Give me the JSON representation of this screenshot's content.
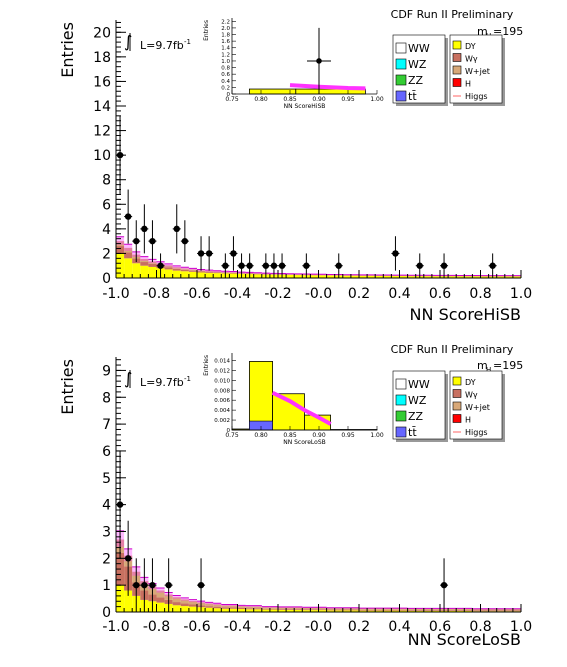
{
  "chart_data": [
    {
      "type": "bar",
      "stacked": true,
      "xlabel": "NN ScoreHiSB",
      "ylabel": "Entries",
      "xlim": [
        -1.0,
        1.0
      ],
      "ylim": [
        0,
        21
      ],
      "ytick_step": 2,
      "xticks": [
        -1.0,
        -0.8,
        -0.6,
        -0.4,
        -0.2,
        -0.0,
        0.2,
        0.4,
        0.6,
        0.8,
        1.0
      ],
      "xtick_labels": [
        "-1.0",
        "-0.8",
        "-0.6",
        "-0.4",
        "-0.2",
        "-0.0",
        "0.2",
        "0.4",
        "0.6",
        "0.8",
        "1.0"
      ],
      "yticks": [
        0,
        2,
        4,
        6,
        8,
        10,
        12,
        14,
        16,
        18,
        20
      ],
      "ytick_labels": [
        "0",
        "2",
        "4",
        "6",
        "8",
        "10",
        "12",
        "14",
        "16",
        "18",
        "20"
      ],
      "header": "CDF Run II Preliminary",
      "lumi_label": "L=9.7fb",
      "lumi_sup": "-1",
      "mass_label": "m",
      "mass_sub": "H",
      "mass_value": "=195",
      "bin_width": 0.04,
      "bin_edges_start": -1.0,
      "series": [
        {
          "name": "DY",
          "color": "#ffff00",
          "values": [
            2.0,
            1.6,
            1.2,
            1.0,
            0.9,
            0.8,
            0.7,
            0.6,
            0.55,
            0.5,
            0.45,
            0.42,
            0.4,
            0.38,
            0.36,
            0.34,
            0.32,
            0.3,
            0.28,
            0.27,
            0.26,
            0.25,
            0.24,
            0.23,
            0.22,
            0.21,
            0.2,
            0.2,
            0.19,
            0.19,
            0.18,
            0.18,
            0.17,
            0.17,
            0.16,
            0.16,
            0.15,
            0.15,
            0.15,
            0.14,
            0.14,
            0.14,
            0.13,
            0.13,
            0.13,
            0.12,
            0.12,
            0.12,
            0.12,
            0.12
          ]
        },
        {
          "name": "Wγ",
          "color": "#c87060",
          "values": [
            0.6,
            0.5,
            0.4,
            0.3,
            0.25,
            0.2,
            0.18,
            0.15,
            0.12,
            0.1,
            0.08,
            0.07,
            0.06,
            0.05,
            0.05,
            0.04,
            0.04,
            0.03,
            0.03,
            0.03,
            0.03,
            0.02,
            0.02,
            0.02,
            0.02,
            0.02,
            0.02,
            0.02,
            0.02,
            0.02,
            0.02,
            0.02,
            0.02,
            0.02,
            0.02,
            0.02,
            0.02,
            0.02,
            0.02,
            0.02,
            0.02,
            0.02,
            0.02,
            0.02,
            0.02,
            0.02,
            0.02,
            0.02,
            0.02,
            0.02
          ]
        },
        {
          "name": "W+jet",
          "color": "#d8a878",
          "values": [
            0.4,
            0.35,
            0.3,
            0.25,
            0.2,
            0.18,
            0.15,
            0.13,
            0.11,
            0.1,
            0.09,
            0.08,
            0.07,
            0.06,
            0.06,
            0.05,
            0.05,
            0.05,
            0.04,
            0.04,
            0.04,
            0.04,
            0.04,
            0.04,
            0.04,
            0.04,
            0.03,
            0.03,
            0.03,
            0.03,
            0.03,
            0.03,
            0.03,
            0.03,
            0.03,
            0.03,
            0.03,
            0.03,
            0.03,
            0.03,
            0.03,
            0.03,
            0.03,
            0.03,
            0.03,
            0.03,
            0.03,
            0.03,
            0.03,
            0.03
          ]
        }
      ],
      "band_color": "#ff33ff",
      "data_points": [
        {
          "x": -0.98,
          "y": 10,
          "yerr": 3.2
        },
        {
          "x": -0.94,
          "y": 5,
          "yerr": 2.2
        },
        {
          "x": -0.9,
          "y": 3,
          "yerr": 1.7
        },
        {
          "x": -0.86,
          "y": 4,
          "yerr": 2.0
        },
        {
          "x": -0.82,
          "y": 3,
          "yerr": 1.7
        },
        {
          "x": -0.78,
          "y": 1,
          "yerr": 1.0
        },
        {
          "x": -0.7,
          "y": 4,
          "yerr": 2.0
        },
        {
          "x": -0.66,
          "y": 3,
          "yerr": 1.7
        },
        {
          "x": -0.58,
          "y": 2,
          "yerr": 1.4
        },
        {
          "x": -0.54,
          "y": 2,
          "yerr": 1.4
        },
        {
          "x": -0.46,
          "y": 1,
          "yerr": 1.0
        },
        {
          "x": -0.42,
          "y": 2,
          "yerr": 1.4
        },
        {
          "x": -0.38,
          "y": 1,
          "yerr": 1.0
        },
        {
          "x": -0.34,
          "y": 1,
          "yerr": 1.0
        },
        {
          "x": -0.26,
          "y": 1,
          "yerr": 1.0
        },
        {
          "x": -0.22,
          "y": 1,
          "yerr": 1.0
        },
        {
          "x": -0.18,
          "y": 1,
          "yerr": 1.0
        },
        {
          "x": -0.06,
          "y": 1,
          "yerr": 1.0
        },
        {
          "x": 0.1,
          "y": 1,
          "yerr": 1.0
        },
        {
          "x": 0.38,
          "y": 2,
          "yerr": 1.4
        },
        {
          "x": 0.5,
          "y": 1,
          "yerr": 1.0
        },
        {
          "x": 0.62,
          "y": 1,
          "yerr": 1.0
        },
        {
          "x": 0.86,
          "y": 1,
          "yerr": 1.0
        }
      ],
      "inset": {
        "xlabel": "NN ScoreHiSB",
        "ylabel": "Entries",
        "xlim": [
          0.75,
          1.0
        ],
        "ylim": [
          0,
          2.3
        ],
        "xticks": [
          0.75,
          0.8,
          0.85,
          0.9,
          0.95,
          1.0
        ],
        "xtick_labels": [
          "0.75",
          "0.80",
          "0.85",
          "0.90",
          "0.95",
          "1.00"
        ],
        "yticks": [
          0,
          0.2,
          0.4,
          0.6,
          0.8,
          1.0,
          1.2,
          1.4,
          1.6,
          1.8,
          2.0,
          2.2
        ],
        "ytick_labels": [
          "0",
          "0.2",
          "0.4",
          "0.6",
          "0.8",
          "1.0",
          "1.2",
          "1.4",
          "1.6",
          "1.8",
          "2.0",
          "2.2"
        ],
        "bins": [
          {
            "x0": 0.78,
            "x1": 0.86,
            "y": 0.15
          },
          {
            "x0": 0.86,
            "x1": 0.98,
            "y": 0.15
          }
        ],
        "band": [
          [
            0.85,
            0.27
          ],
          [
            0.9,
            0.22
          ],
          [
            0.95,
            0.18
          ],
          [
            0.98,
            0.17
          ]
        ],
        "data_points": [
          {
            "x": 0.9,
            "y": 1.0,
            "yerr": 1.0
          }
        ]
      }
    },
    {
      "type": "bar",
      "stacked": true,
      "xlabel": "NN ScoreLoSB",
      "ylabel": "Entries",
      "xlim": [
        -1.0,
        1.0
      ],
      "ylim": [
        0,
        9.5
      ],
      "ytick_step": 1,
      "xticks": [
        -1.0,
        -0.8,
        -0.6,
        -0.4,
        -0.2,
        -0.0,
        0.2,
        0.4,
        0.6,
        0.8,
        1.0
      ],
      "xtick_labels": [
        "-1.0",
        "-0.8",
        "-0.6",
        "-0.4",
        "-0.2",
        "-0.0",
        "0.2",
        "0.4",
        "0.6",
        "0.8",
        "1.0"
      ],
      "yticks": [
        0,
        1,
        2,
        3,
        4,
        5,
        6,
        7,
        8,
        9
      ],
      "ytick_labels": [
        "0",
        "1",
        "2",
        "3",
        "4",
        "5",
        "6",
        "7",
        "8",
        "9"
      ],
      "header": "CDF Run II Preliminary",
      "lumi_label": "L=9.7fb",
      "lumi_sup": "-1",
      "mass_label": "m",
      "mass_sub": "H",
      "mass_value": "=195",
      "bin_width": 0.04,
      "bin_edges_start": -1.0,
      "series": [
        {
          "name": "DY",
          "color": "#ffff00",
          "values": [
            1.0,
            0.8,
            0.6,
            0.45,
            0.4,
            0.35,
            0.3,
            0.25,
            0.22,
            0.2,
            0.18,
            0.16,
            0.14,
            0.12,
            0.12,
            0.11,
            0.1,
            0.1,
            0.09,
            0.09,
            0.08,
            0.08,
            0.08,
            0.07,
            0.07,
            0.07,
            0.06,
            0.06,
            0.06,
            0.06,
            0.05,
            0.05,
            0.05,
            0.05,
            0.05,
            0.05,
            0.04,
            0.04,
            0.04,
            0.04,
            0.04,
            0.04,
            0.04,
            0.04,
            0.03,
            0.03,
            0.03,
            0.03,
            0.03,
            0.03
          ]
        },
        {
          "name": "Wγ",
          "color": "#c87060",
          "values": [
            1.2,
            0.9,
            0.5,
            0.35,
            0.25,
            0.2,
            0.15,
            0.12,
            0.1,
            0.08,
            0.07,
            0.06,
            0.06,
            0.05,
            0.05,
            0.04,
            0.04,
            0.04,
            0.03,
            0.03,
            0.03,
            0.03,
            0.03,
            0.03,
            0.03,
            0.03,
            0.03,
            0.03,
            0.03,
            0.03,
            0.03,
            0.03,
            0.03,
            0.03,
            0.03,
            0.03,
            0.03,
            0.03,
            0.03,
            0.03,
            0.03,
            0.03,
            0.03,
            0.03,
            0.03,
            0.03,
            0.03,
            0.03,
            0.03,
            0.03
          ]
        },
        {
          "name": "W+jet",
          "color": "#d8a878",
          "values": [
            0.5,
            0.4,
            0.4,
            0.35,
            0.3,
            0.25,
            0.2,
            0.18,
            0.15,
            0.13,
            0.11,
            0.1,
            0.09,
            0.08,
            0.08,
            0.07,
            0.07,
            0.07,
            0.06,
            0.06,
            0.06,
            0.06,
            0.06,
            0.06,
            0.06,
            0.06,
            0.05,
            0.05,
            0.05,
            0.05,
            0.05,
            0.05,
            0.05,
            0.05,
            0.05,
            0.05,
            0.05,
            0.05,
            0.05,
            0.05,
            0.05,
            0.05,
            0.05,
            0.05,
            0.05,
            0.05,
            0.05,
            0.05,
            0.05,
            0.05
          ]
        }
      ],
      "band_color": "#ff33ff",
      "data_points": [
        {
          "x": -0.98,
          "y": 4,
          "yerr": 2.0
        },
        {
          "x": -0.94,
          "y": 2,
          "yerr": 1.4
        },
        {
          "x": -0.9,
          "y": 1,
          "yerr": 1.0
        },
        {
          "x": -0.86,
          "y": 1,
          "yerr": 1.0
        },
        {
          "x": -0.82,
          "y": 1,
          "yerr": 1.0
        },
        {
          "x": -0.74,
          "y": 1,
          "yerr": 1.0
        },
        {
          "x": -0.58,
          "y": 1,
          "yerr": 1.0
        },
        {
          "x": 0.62,
          "y": 1,
          "yerr": 1.0
        }
      ],
      "inset": {
        "xlabel": "NN ScoreLoSB",
        "ylabel": "Entries",
        "xlim": [
          0.75,
          1.0
        ],
        "ylim": [
          0,
          0.0155
        ],
        "xticks": [
          0.75,
          0.8,
          0.85,
          0.9,
          0.95,
          1.0
        ],
        "xtick_labels": [
          "0.75",
          "0.80",
          "0.85",
          "0.90",
          "0.95",
          "1.00"
        ],
        "yticks": [
          0,
          0.002,
          0.004,
          0.006,
          0.008,
          0.01,
          0.012,
          0.014
        ],
        "ytick_labels": [
          "0",
          "0.002",
          "0.004",
          "0.006",
          "0.008",
          "0.010",
          "0.012",
          "0.014"
        ],
        "bins": [
          {
            "x0": 0.75,
            "x1": 0.78,
            "y": 0.0002
          },
          {
            "x0": 0.78,
            "x1": 0.82,
            "y": 0.0138
          },
          {
            "x0": 0.82,
            "x1": 0.875,
            "y": 0.0073
          },
          {
            "x0": 0.875,
            "x1": 0.92,
            "y": 0.003
          },
          {
            "x0": 0.92,
            "x1": 1.0,
            "y": 0.0001
          }
        ],
        "ttbar_bin": {
          "x0": 0.78,
          "x1": 0.82,
          "y": 0.0018
        },
        "band": [
          [
            0.82,
            0.0075
          ],
          [
            0.85,
            0.0058
          ],
          [
            0.875,
            0.004
          ],
          [
            0.9,
            0.0025
          ],
          [
            0.92,
            0.0012
          ]
        ],
        "data_points": []
      }
    }
  ],
  "legend": {
    "left": [
      {
        "label": "WW",
        "color": "#ffffff"
      },
      {
        "label": "WZ",
        "color": "#00ffff"
      },
      {
        "label": "ZZ",
        "color": "#33cc33"
      },
      {
        "label": "tt̄",
        "color": "#6666ff"
      }
    ],
    "right": [
      {
        "label": "DY",
        "color": "#ffff00"
      },
      {
        "label": "Wγ",
        "color": "#c87060"
      },
      {
        "label": "W+jet",
        "color": "#d8a878"
      },
      {
        "label": "H",
        "color": "#ff0000"
      },
      {
        "label": "Higgs",
        "color": "#ff6666",
        "line": true
      }
    ]
  }
}
